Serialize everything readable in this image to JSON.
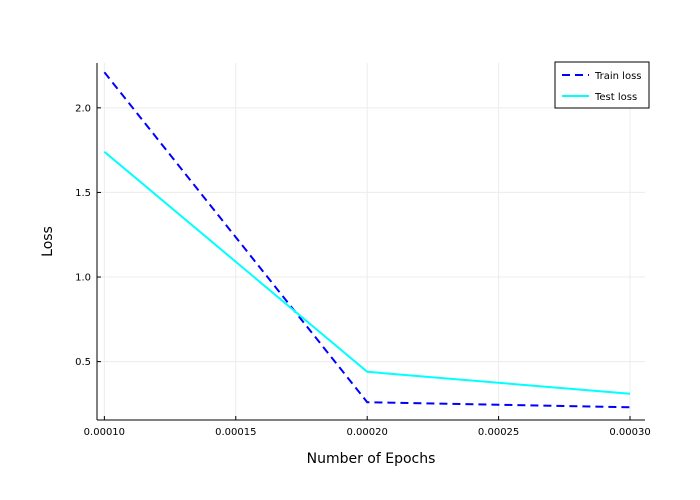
{
  "chart_data": {
    "type": "line",
    "xlabel": "Number of Epochs",
    "ylabel": "Loss",
    "x": [
      0.0001,
      0.0002,
      0.0003
    ],
    "xlim": [
      9.72e-05,
      0.0003057
    ],
    "ylim": [
      0.155,
      2.265
    ],
    "x_ticks": [
      0.0001,
      0.00015,
      0.0002,
      0.00025,
      0.0003
    ],
    "x_tick_labels": [
      "0.00010",
      "0.00015",
      "0.00020",
      "0.00025",
      "0.00030"
    ],
    "y_ticks": [
      0.5,
      1.0,
      1.5,
      2.0
    ],
    "y_tick_labels": [
      "0.5",
      "1.0",
      "1.5",
      "2.0"
    ],
    "grid": true,
    "legend_position": "top-right",
    "series": [
      {
        "name": "Train loss",
        "values": [
          2.21,
          0.26,
          0.23
        ],
        "color": "#0000ff",
        "style": "dashed"
      },
      {
        "name": "Test loss",
        "values": [
          1.74,
          0.44,
          0.31
        ],
        "color": "#00ffff",
        "style": "solid"
      }
    ]
  }
}
